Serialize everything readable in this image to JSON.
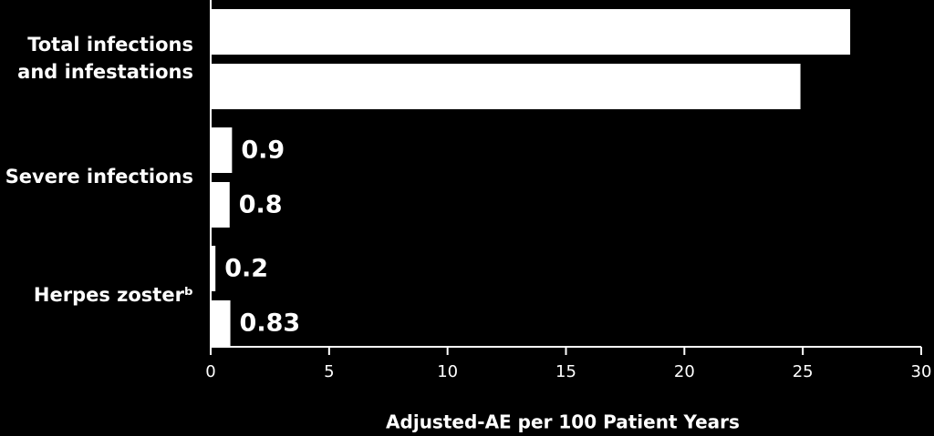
{
  "chart_data": {
    "type": "hbar",
    "categories": [
      "Total infections and infestations",
      "Severe infections",
      "Herpes zosterᵇ"
    ],
    "series": [
      {
        "color": "#ffffff",
        "values": [
          27,
          0.9,
          0.2
        ],
        "value_labels": [
          null,
          "0.9",
          "0.2"
        ]
      },
      {
        "color": "#ffffff",
        "values": [
          24.9,
          0.8,
          0.83
        ],
        "value_labels": [
          null,
          "0.8",
          "0.83"
        ]
      }
    ],
    "xlim": [
      0,
      30
    ],
    "xticks": [
      0,
      5,
      10,
      15,
      20,
      25,
      30
    ],
    "x_label": "Adjusted-AE per 100 Patient Years"
  }
}
